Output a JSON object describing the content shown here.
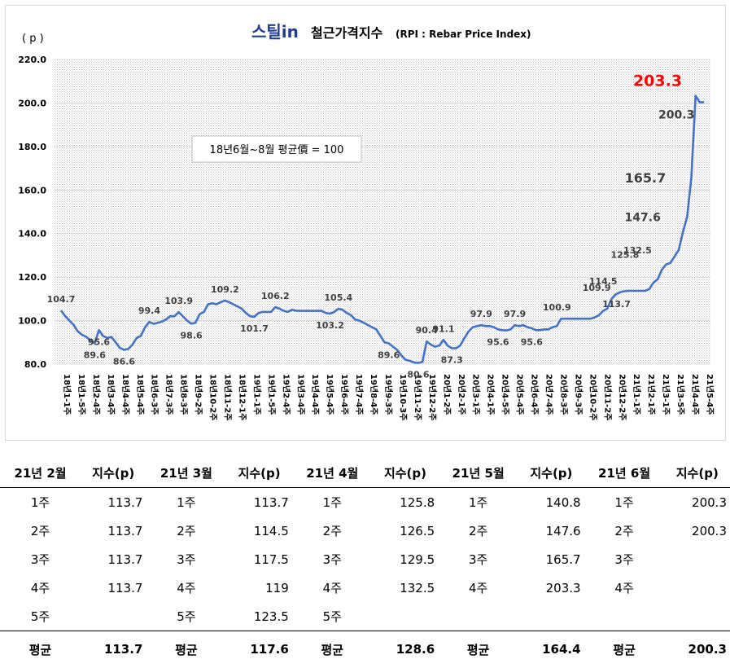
{
  "logo_text": "스틸in",
  "title": "철근가격지수",
  "title_sub": "(RPI : Rebar Price Index)",
  "y_unit": "( p )",
  "note": "18년6월~8월 평균價 = 100",
  "colors": {
    "line": "#4472C4",
    "highlight": "#FF0000",
    "label": "#404040"
  },
  "chart_data": {
    "type": "line",
    "title": "철근가격지수(RPI : Rebar Price Index)",
    "ylabel": "( p )",
    "ylim": [
      80,
      220
    ],
    "yticks": [
      "80.0",
      "100.0",
      "120.0",
      "140.0",
      "160.0",
      "180.0",
      "200.0",
      "220.0"
    ],
    "grid": "dotted",
    "x_tick_labels": [
      "18년1-1주",
      "18년1-5주",
      "18년2-4주",
      "18년3-4주",
      "18년4-4주",
      "18년5-4주",
      "18년6-3주",
      "18년7-3주",
      "18년8-3주",
      "18년9-2주",
      "18년10-2주",
      "18년11-2주",
      "18년12-1주",
      "19년1-1주",
      "19년1-5주",
      "19년2-4주",
      "19년3-4주",
      "19년4-4주",
      "19년5-4주",
      "19년6-4주",
      "19년7-4주",
      "19년8-4주",
      "19년9-3주",
      "19년10-3주",
      "19년11-2주",
      "19년12-2주",
      "20년1-2주",
      "20년2-1주",
      "20년3-1주",
      "20년4-1주",
      "20년4-5주",
      "20년5-4주",
      "20년6-4주",
      "20년7-4주",
      "20년8-3주",
      "20년9-3주",
      "20년10-2주",
      "20년11-2주",
      "20년12-2주",
      "21년1-1주",
      "21년2-1주",
      "21년3-1주",
      "21년3-5주",
      "21년4-4주",
      "21년5-4주"
    ],
    "series": [
      {
        "name": "",
        "values": [
          104.7,
          102,
          100,
          98,
          95,
          93.5,
          92.5,
          91,
          89.6,
          95.6,
          93,
          92,
          92.5,
          90,
          87.5,
          86.6,
          87,
          89,
          92,
          93,
          97,
          99.4,
          98.5,
          99,
          99.5,
          100.5,
          102,
          102,
          103.9,
          102,
          100,
          98.6,
          99,
          103,
          104,
          107.5,
          108,
          107.5,
          108.5,
          109.2,
          108.5,
          107.5,
          106.5,
          105.5,
          103.5,
          102,
          101.7,
          103.5,
          104,
          104,
          104,
          106.2,
          105.5,
          104.5,
          104,
          105,
          104.5,
          104.5,
          104.5,
          104.5,
          104.5,
          104.5,
          104.5,
          103.5,
          103.2,
          104,
          105.4,
          105,
          103.5,
          102.5,
          100.5,
          100,
          99,
          98,
          97,
          96,
          93,
          90,
          89.6,
          88,
          86.5,
          84,
          82,
          81.5,
          80.8,
          80.6,
          81,
          90.4,
          89,
          88,
          88.5,
          91.1,
          88.5,
          87.3,
          87.3,
          88.5,
          92,
          95,
          97,
          97.5,
          97.9,
          97.5,
          97.5,
          97,
          96,
          95.6,
          95.5,
          96,
          97.9,
          97.5,
          97.9,
          97,
          96.5,
          95.6,
          95.6,
          96,
          96,
          97,
          97.5,
          100.9,
          100.9,
          100.9,
          100.9,
          100.9,
          100.9,
          100.9,
          100.9,
          101.5,
          102.5,
          104.5,
          105.5,
          109.9,
          112,
          113,
          113.5,
          113.7,
          113.7,
          113.7,
          113.7,
          113.7,
          114.5,
          117.5,
          119,
          123.5,
          125.8,
          126.5,
          129.5,
          132.5,
          140.8,
          147.6,
          165.7,
          203.3,
          200.3,
          200.3
        ]
      }
    ],
    "annotations": [
      {
        "text": "104.7",
        "x": 0,
        "y": 104.7
      },
      {
        "text": "95.6",
        "x": 9,
        "y": 95.6
      },
      {
        "text": "89.6",
        "x": 8,
        "y": 89.6
      },
      {
        "text": "86.6",
        "x": 15,
        "y": 86.6
      },
      {
        "text": "99.4",
        "x": 21,
        "y": 99.4
      },
      {
        "text": "103.9",
        "x": 28,
        "y": 103.9
      },
      {
        "text": "98.6",
        "x": 31,
        "y": 98.6
      },
      {
        "text": "109.2",
        "x": 39,
        "y": 109.2
      },
      {
        "text": "101.7",
        "x": 46,
        "y": 101.7
      },
      {
        "text": "106.2",
        "x": 51,
        "y": 106.2
      },
      {
        "text": "103.2",
        "x": 64,
        "y": 103.2
      },
      {
        "text": "105.4",
        "x": 66,
        "y": 105.4
      },
      {
        "text": "89.6",
        "x": 78,
        "y": 89.6
      },
      {
        "text": "80.6",
        "x": 85,
        "y": 80.6
      },
      {
        "text": "90.4",
        "x": 87,
        "y": 90.4
      },
      {
        "text": "91.1",
        "x": 91,
        "y": 91.1
      },
      {
        "text": "87.3",
        "x": 93,
        "y": 87.3
      },
      {
        "text": "97.9",
        "x": 100,
        "y": 97.9
      },
      {
        "text": "95.6",
        "x": 104,
        "y": 95.6
      },
      {
        "text": "97.9",
        "x": 108,
        "y": 97.9
      },
      {
        "text": "95.6",
        "x": 112,
        "y": 95.6
      },
      {
        "text": "100.9",
        "x": 118,
        "y": 100.9
      },
      {
        "text": "109.9",
        "x": 129,
        "y": 109.9
      },
      {
        "text": "114.5",
        "x": 136,
        "y": 114.5
      },
      {
        "text": "113.7",
        "x": 138,
        "y": 113.7
      },
      {
        "text": "125.8",
        "x": 140,
        "y": 125.8
      },
      {
        "text": "132.5",
        "x": 143,
        "y": 132.5
      },
      {
        "text": "147.6",
        "x": 145,
        "y": 147.6
      },
      {
        "text": "165.7",
        "x": 146,
        "y": 165.7
      },
      {
        "text": "203.3",
        "x": 147,
        "y": 203.3
      },
      {
        "text": "200.3",
        "x": 148,
        "y": 200.3
      }
    ]
  },
  "table": {
    "headers": [
      "21년 2월",
      "지수(p)",
      "21년 3월",
      "지수(p)",
      "21년 4월",
      "지수(p)",
      "21년 5월",
      "지수(p)",
      "21년 6월",
      "지수(p)"
    ],
    "rows": [
      [
        "1주",
        "113.7",
        "1주",
        "113.7",
        "1주",
        "125.8",
        "1주",
        "140.8",
        "1주",
        "200.3"
      ],
      [
        "2주",
        "113.7",
        "2주",
        "114.5",
        "2주",
        "126.5",
        "2주",
        "147.6",
        "2주",
        "200.3"
      ],
      [
        "3주",
        "113.7",
        "3주",
        "117.5",
        "3주",
        "129.5",
        "3주",
        "165.7",
        "3주",
        ""
      ],
      [
        "4주",
        "113.7",
        "4주",
        "119",
        "4주",
        "132.5",
        "4주",
        "203.3",
        "4주",
        ""
      ],
      [
        "5주",
        "",
        "5주",
        "123.5",
        "5주",
        "",
        "",
        "",
        "",
        ""
      ]
    ],
    "avg": [
      "평균",
      "113.7",
      "평균",
      "117.6",
      "평균",
      "128.6",
      "평균",
      "164.4",
      "평균",
      "200.3"
    ]
  }
}
